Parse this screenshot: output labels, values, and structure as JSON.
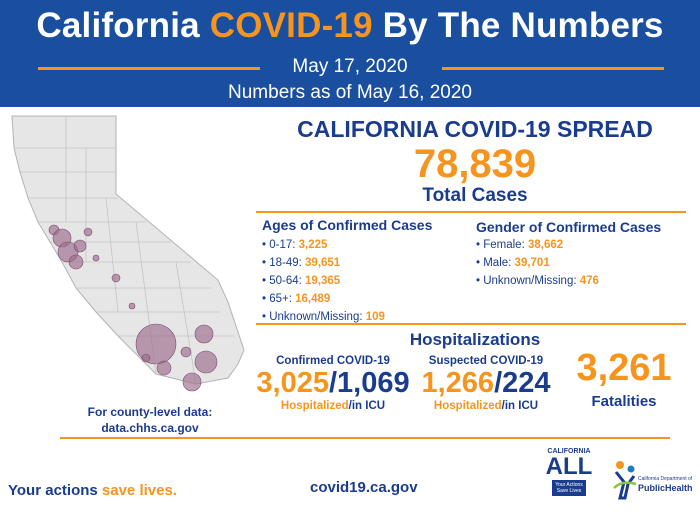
{
  "header": {
    "title_pre": "California ",
    "title_highlight": "COVID-19",
    "title_post": " By The Numbers",
    "date": "May 17, 2020",
    "as_of": "Numbers as of May 16, 2020"
  },
  "spread": {
    "title": "CALIFORNIA COVID-19 SPREAD",
    "total_cases": "78,839",
    "total_label": "Total Cases"
  },
  "ages": {
    "title": "Ages of Confirmed Cases",
    "items": [
      {
        "label": "• 0-17: ",
        "value": "3,225"
      },
      {
        "label": "• 18-49: ",
        "value": "39,651"
      },
      {
        "label": "• 50-64: ",
        "value": "19,365"
      },
      {
        "label": "• 65+: ",
        "value": "16,489"
      },
      {
        "label": "• Unknown/Missing: ",
        "value": "109"
      }
    ]
  },
  "gender": {
    "title": "Gender of Confirmed Cases",
    "items": [
      {
        "label": "• Female: ",
        "value": "38,662"
      },
      {
        "label": "• Male: ",
        "value": "39,701"
      },
      {
        "label": "• Unknown/Missing: ",
        "value": "476"
      }
    ]
  },
  "hospitalizations": {
    "title": "Hospitalizations",
    "confirmed": {
      "label": "Confirmed COVID-19",
      "hospitalized": "3,025",
      "icu": "1,069",
      "cap_hosp": "Hospitalized",
      "cap_icu": "/in ICU"
    },
    "suspected": {
      "label": "Suspected COVID-19",
      "hospitalized": "1,266",
      "icu": "224",
      "cap_hosp": "Hospitalized",
      "cap_icu": "/in ICU"
    }
  },
  "fatalities": {
    "count": "3,261",
    "label": "Fatalities"
  },
  "map": {
    "county_note_line1": "For county-level data:",
    "county_note_line2": "data.chhs.ca.gov"
  },
  "footer": {
    "slogan_pre": "Your actions ",
    "slogan_highlight": "save lives.",
    "url": "covid19.ca.gov",
    "logo_all_top": "CALIFORNIA",
    "logo_all_word": "ALL",
    "logo_all_tag1": "Your Actions",
    "logo_all_tag2": "Save Lives",
    "logo_cdph_small": "California Department of",
    "logo_cdph_name": "PublicHealth"
  },
  "colors": {
    "header_blue": "#1a4fa0",
    "navy": "#1a3c8f",
    "orange": "#f7941d",
    "bubble": "#9c6b8b"
  }
}
